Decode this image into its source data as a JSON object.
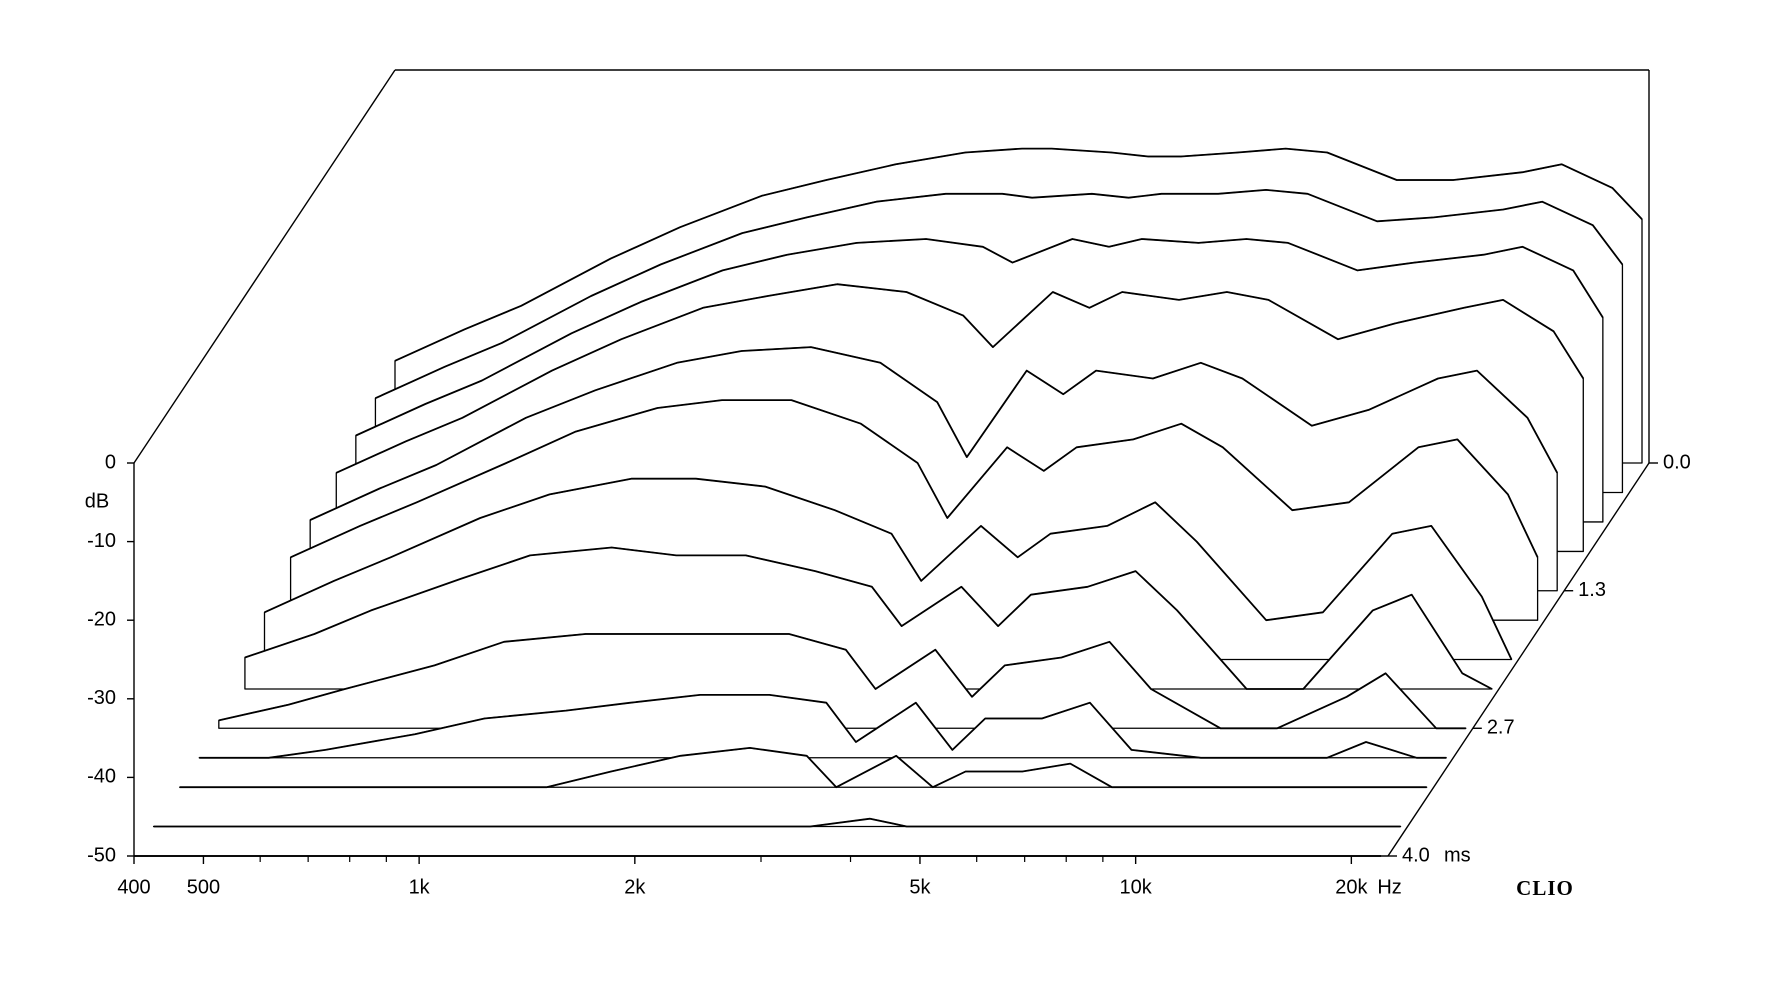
{
  "chart_data": {
    "type": "waterfall",
    "y_label": "dB",
    "x_label": "Hz",
    "z_label": "ms",
    "brand": "CLIO",
    "xscale": "log",
    "xlim": [
      400,
      22500
    ],
    "ylim": [
      -50,
      0
    ],
    "zlim": [
      0,
      4
    ],
    "color": "#000000",
    "fill": "#ffffff",
    "xticks": [
      {
        "value": 400,
        "label": "400"
      },
      {
        "value": 500,
        "label": "500"
      },
      {
        "value": 1000,
        "label": "1k"
      },
      {
        "value": 2000,
        "label": "2k"
      },
      {
        "value": 5000,
        "label": "5k"
      },
      {
        "value": 10000,
        "label": "10k"
      },
      {
        "value": 20000,
        "label": "20k"
      }
    ],
    "xminorticks": [
      600,
      700,
      800,
      900,
      3000,
      4000,
      6000,
      7000,
      8000,
      9000
    ],
    "yticks": [
      0,
      -10,
      -20,
      -30,
      -40,
      -50
    ],
    "zticks": [
      {
        "value": 0,
        "label": "0.0"
      },
      1.3,
      2.7,
      {
        "value": 4,
        "label": "4.0"
      }
    ],
    "x": [
      400,
      500,
      600,
      800,
      1000,
      1300,
      1600,
      2000,
      2500,
      3000,
      3300,
      4000,
      4500,
      5000,
      6000,
      7000,
      8000,
      10000,
      12000,
      15000,
      17000,
      20000,
      22000
    ],
    "z": [
      0,
      0.3,
      0.6,
      0.9,
      1.3,
      1.6,
      2.0,
      2.3,
      2.7,
      3.0,
      3.3,
      3.7,
      4.0
    ],
    "series": [
      {
        "values": [
          -37,
          -33,
          -30,
          -24,
          -20,
          -16,
          -14,
          -12,
          -10.5,
          -10,
          -10,
          -10.5,
          -11,
          -11,
          -10.5,
          -10,
          -10.5,
          -14,
          -14,
          -13,
          -12,
          -15,
          -19
        ]
      },
      {
        "values": [
          -38,
          -34,
          -31,
          -25,
          -21,
          -17,
          -15,
          -13,
          -12,
          -12,
          -12.5,
          -12,
          -12.5,
          -12,
          -12,
          -11.5,
          -12,
          -15.5,
          -15,
          -14,
          -13,
          -16,
          -21
        ]
      },
      {
        "values": [
          -39,
          -35,
          -32,
          -26,
          -22,
          -18,
          -16,
          -14.5,
          -14,
          -15,
          -17,
          -14,
          -15,
          -14,
          -14.5,
          -14,
          -14.5,
          -18,
          -17,
          -16,
          -15,
          -18,
          -24
        ]
      },
      {
        "values": [
          -40,
          -36,
          -33,
          -27,
          -23,
          -19,
          -17.5,
          -16,
          -17,
          -20,
          -24,
          -17,
          -19,
          -17,
          -18,
          -17,
          -18,
          -23,
          -21,
          -19,
          -18,
          -22,
          -28
        ]
      },
      {
        "values": [
          -41,
          -37,
          -34,
          -28,
          -24.5,
          -21,
          -19.5,
          -19,
          -21,
          -26,
          -33,
          -22,
          -25,
          -22,
          -23,
          -21,
          -23,
          -29,
          -27,
          -23,
          -22,
          -28,
          -35
        ]
      },
      {
        "values": [
          -42,
          -38,
          -35,
          -30,
          -26,
          -23,
          -22,
          -22,
          -25,
          -30,
          -37,
          -28,
          -31,
          -28,
          -27,
          -25,
          -28,
          -36,
          -35,
          -28,
          -27,
          -34,
          -42
        ]
      },
      {
        "values": [
          -44,
          -40,
          -37,
          -32,
          -29,
          -27,
          -27,
          -28,
          -31,
          -34,
          -40,
          -33,
          -37,
          -34,
          -33,
          -30,
          -35,
          -45,
          -44,
          -34,
          -33,
          -42,
          -50
        ]
      },
      {
        "values": [
          -46,
          -43,
          -40,
          -36,
          -33,
          -32,
          -33,
          -33,
          -35,
          -37,
          -42,
          -37,
          -42,
          -38,
          -37,
          -35,
          -40,
          -50,
          -50,
          -40,
          -38,
          -48,
          -50
        ]
      },
      {
        "values": [
          -49,
          -47,
          -45,
          -42,
          -39,
          -38,
          -38,
          -38,
          -38,
          -40,
          -45,
          -40,
          -46,
          -42,
          -41,
          -39,
          -45,
          -50,
          -50,
          -46,
          -43,
          -50,
          -50
        ]
      },
      {
        "values": [
          -50,
          -50,
          -49,
          -47,
          -45,
          -44,
          -43,
          -42,
          -42,
          -43,
          -48,
          -43,
          -49,
          -45,
          -45,
          -43,
          -49,
          -50,
          -50,
          -50,
          -48,
          -50,
          -50
        ]
      },
      {
        "values": [
          -50,
          -50,
          -50,
          -50,
          -50,
          -50,
          -48,
          -46,
          -45,
          -46,
          -50,
          -46,
          -50,
          -48,
          -48,
          -47,
          -50,
          -50,
          -50,
          -50,
          -50,
          -50,
          -50
        ]
      },
      {
        "values": [
          -50,
          -50,
          -50,
          -50,
          -50,
          -50,
          -50,
          -50,
          -50,
          -50,
          -50,
          -49,
          -50,
          -50,
          -50,
          -50,
          -50,
          -50,
          -50,
          -50,
          -50,
          -50,
          -50
        ]
      },
      {
        "values": [
          -50,
          -50,
          -50,
          -50,
          -50,
          -50,
          -50,
          -50,
          -50,
          -50,
          -50,
          -50,
          -50,
          -50,
          -50,
          -50,
          -50,
          -50,
          -50,
          -50,
          -50,
          -50,
          -50
        ]
      }
    ]
  }
}
